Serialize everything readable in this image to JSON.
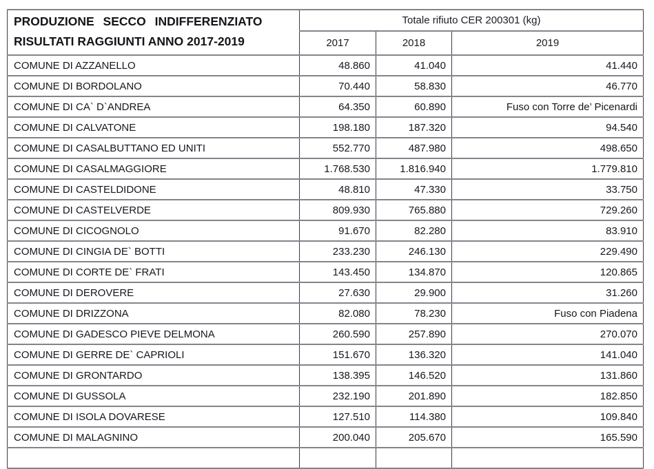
{
  "document": {
    "title_line1": "PRODUZIONE SECCO INDIFFERENZIATO",
    "title_line2": "RISULTATI RAGGIUNTI ANNO 2017-2019",
    "group_header": "Totale rifiuto CER 200301 (kg)",
    "years": [
      "2017",
      "2018",
      "2019"
    ],
    "rows": [
      {
        "comune": "COMUNE DI AZZANELLO",
        "y2017": "48.860",
        "y2018": "41.040",
        "y2019": "41.440"
      },
      {
        "comune": "COMUNE DI BORDOLANO",
        "y2017": "70.440",
        "y2018": "58.830",
        "y2019": "46.770"
      },
      {
        "comune": "COMUNE DI CA` D`ANDREA",
        "y2017": "64.350",
        "y2018": "60.890",
        "y2019": "Fuso con Torre de’ Picenardi"
      },
      {
        "comune": "COMUNE DI CALVATONE",
        "y2017": "198.180",
        "y2018": "187.320",
        "y2019": "94.540"
      },
      {
        "comune": "COMUNE DI CASALBUTTANO ED UNITI",
        "y2017": "552.770",
        "y2018": "487.980",
        "y2019": "498.650"
      },
      {
        "comune": "COMUNE DI CASALMAGGIORE",
        "y2017": "1.768.530",
        "y2018": "1.816.940",
        "y2019": "1.779.810"
      },
      {
        "comune": "COMUNE DI CASTELDIDONE",
        "y2017": "48.810",
        "y2018": "47.330",
        "y2019": "33.750"
      },
      {
        "comune": "COMUNE DI CASTELVERDE",
        "y2017": "809.930",
        "y2018": "765.880",
        "y2019": "729.260"
      },
      {
        "comune": "COMUNE DI CICOGNOLO",
        "y2017": "91.670",
        "y2018": "82.280",
        "y2019": "83.910"
      },
      {
        "comune": "COMUNE DI CINGIA DE` BOTTI",
        "y2017": "233.230",
        "y2018": "246.130",
        "y2019": "229.490"
      },
      {
        "comune": "COMUNE DI CORTE DE` FRATI",
        "y2017": "143.450",
        "y2018": "134.870",
        "y2019": "120.865"
      },
      {
        "comune": "COMUNE DI DEROVERE",
        "y2017": "27.630",
        "y2018": "29.900",
        "y2019": "31.260"
      },
      {
        "comune": "COMUNE DI DRIZZONA",
        "y2017": "82.080",
        "y2018": "78.230",
        "y2019": "Fuso con Piadena"
      },
      {
        "comune": "COMUNE DI GADESCO PIEVE DELMONA",
        "y2017": "260.590",
        "y2018": "257.890",
        "y2019": "270.070"
      },
      {
        "comune": "COMUNE DI GERRE DE` CAPRIOLI",
        "y2017": "151.670",
        "y2018": "136.320",
        "y2019": "141.040"
      },
      {
        "comune": "COMUNE DI GRONTARDO",
        "y2017": "138.395",
        "y2018": "146.520",
        "y2019": "131.860"
      },
      {
        "comune": "COMUNE DI GUSSOLA",
        "y2017": "232.190",
        "y2018": "201.890",
        "y2019": "182.850"
      },
      {
        "comune": "COMUNE DI ISOLA DOVARESE",
        "y2017": "127.510",
        "y2018": "114.380",
        "y2019": "109.840"
      },
      {
        "comune": "COMUNE DI MALAGNINO",
        "y2017": "200.040",
        "y2018": "205.670",
        "y2019": "165.590"
      }
    ]
  }
}
